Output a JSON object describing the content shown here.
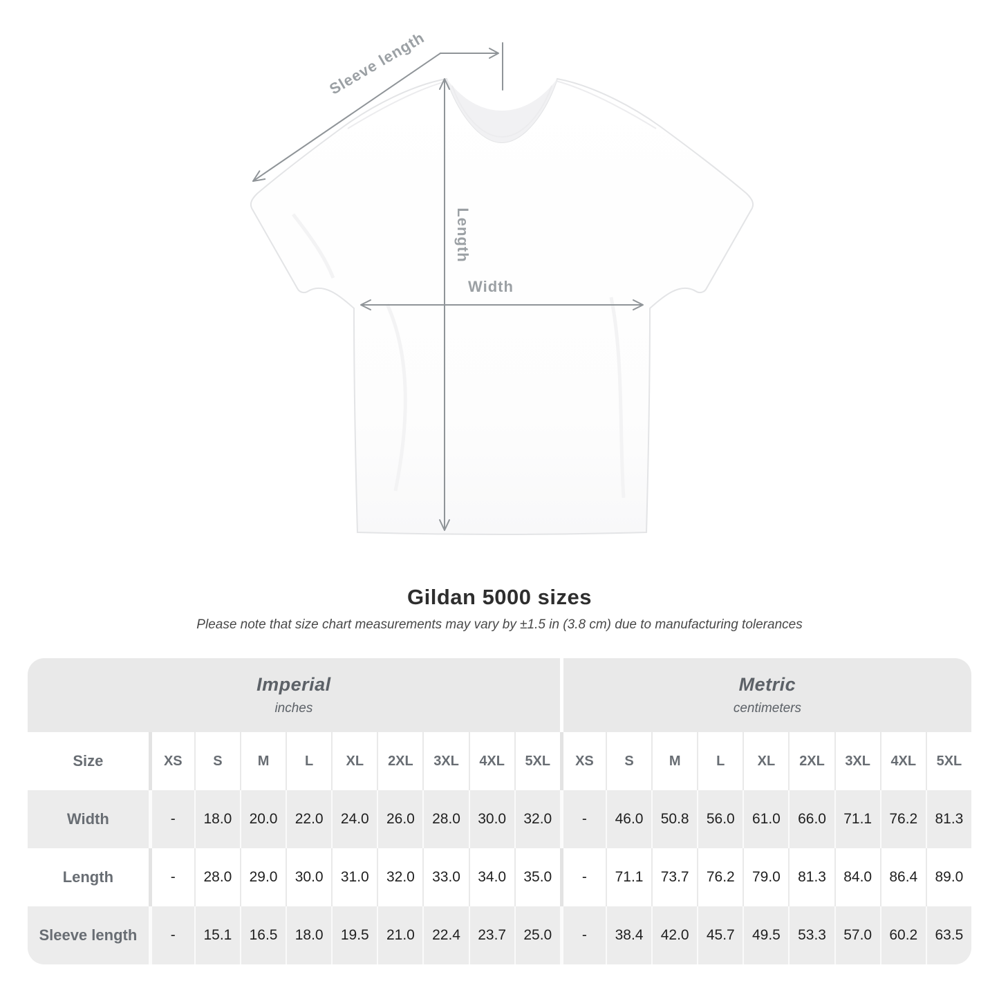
{
  "diagram": {
    "sleeve_length_label": "Sleeve length",
    "length_label": "Length",
    "width_label": "Width"
  },
  "heading": {
    "title": "Gildan 5000 sizes",
    "subtitle": "Please note that size chart measurements may vary by ±1.5 in (3.8 cm) due to manufacturing tolerances"
  },
  "table": {
    "size_label": "Size",
    "sizes": [
      "XS",
      "S",
      "M",
      "L",
      "XL",
      "2XL",
      "3XL",
      "4XL",
      "5XL"
    ],
    "unit_groups": [
      {
        "name": "Imperial",
        "unit": "inches"
      },
      {
        "name": "Metric",
        "unit": "centimeters"
      }
    ],
    "rows": [
      {
        "label": "Width",
        "imperial": [
          "-",
          "18.0",
          "20.0",
          "22.0",
          "24.0",
          "26.0",
          "28.0",
          "30.0",
          "32.0"
        ],
        "metric": [
          "-",
          "46.0",
          "50.8",
          "56.0",
          "61.0",
          "66.0",
          "71.1",
          "76.2",
          "81.3"
        ]
      },
      {
        "label": "Length",
        "imperial": [
          "-",
          "28.0",
          "29.0",
          "30.0",
          "31.0",
          "32.0",
          "33.0",
          "34.0",
          "35.0"
        ],
        "metric": [
          "-",
          "71.1",
          "73.7",
          "76.2",
          "79.0",
          "81.3",
          "84.0",
          "86.4",
          "89.0"
        ]
      },
      {
        "label": "Sleeve length",
        "imperial": [
          "-",
          "15.1",
          "16.5",
          "18.0",
          "19.5",
          "21.0",
          "22.4",
          "23.7",
          "25.0"
        ],
        "metric": [
          "-",
          "38.4",
          "42.0",
          "45.7",
          "49.5",
          "53.3",
          "57.0",
          "60.2",
          "63.5"
        ]
      }
    ]
  },
  "colors": {
    "annotation_line": "#8f9498",
    "annotation_text": "#9ba0a4",
    "band_background": "#e9e9e9",
    "stripe_background": "#ececec",
    "header_text": "#686d73",
    "value_text": "#1f1f1f"
  }
}
